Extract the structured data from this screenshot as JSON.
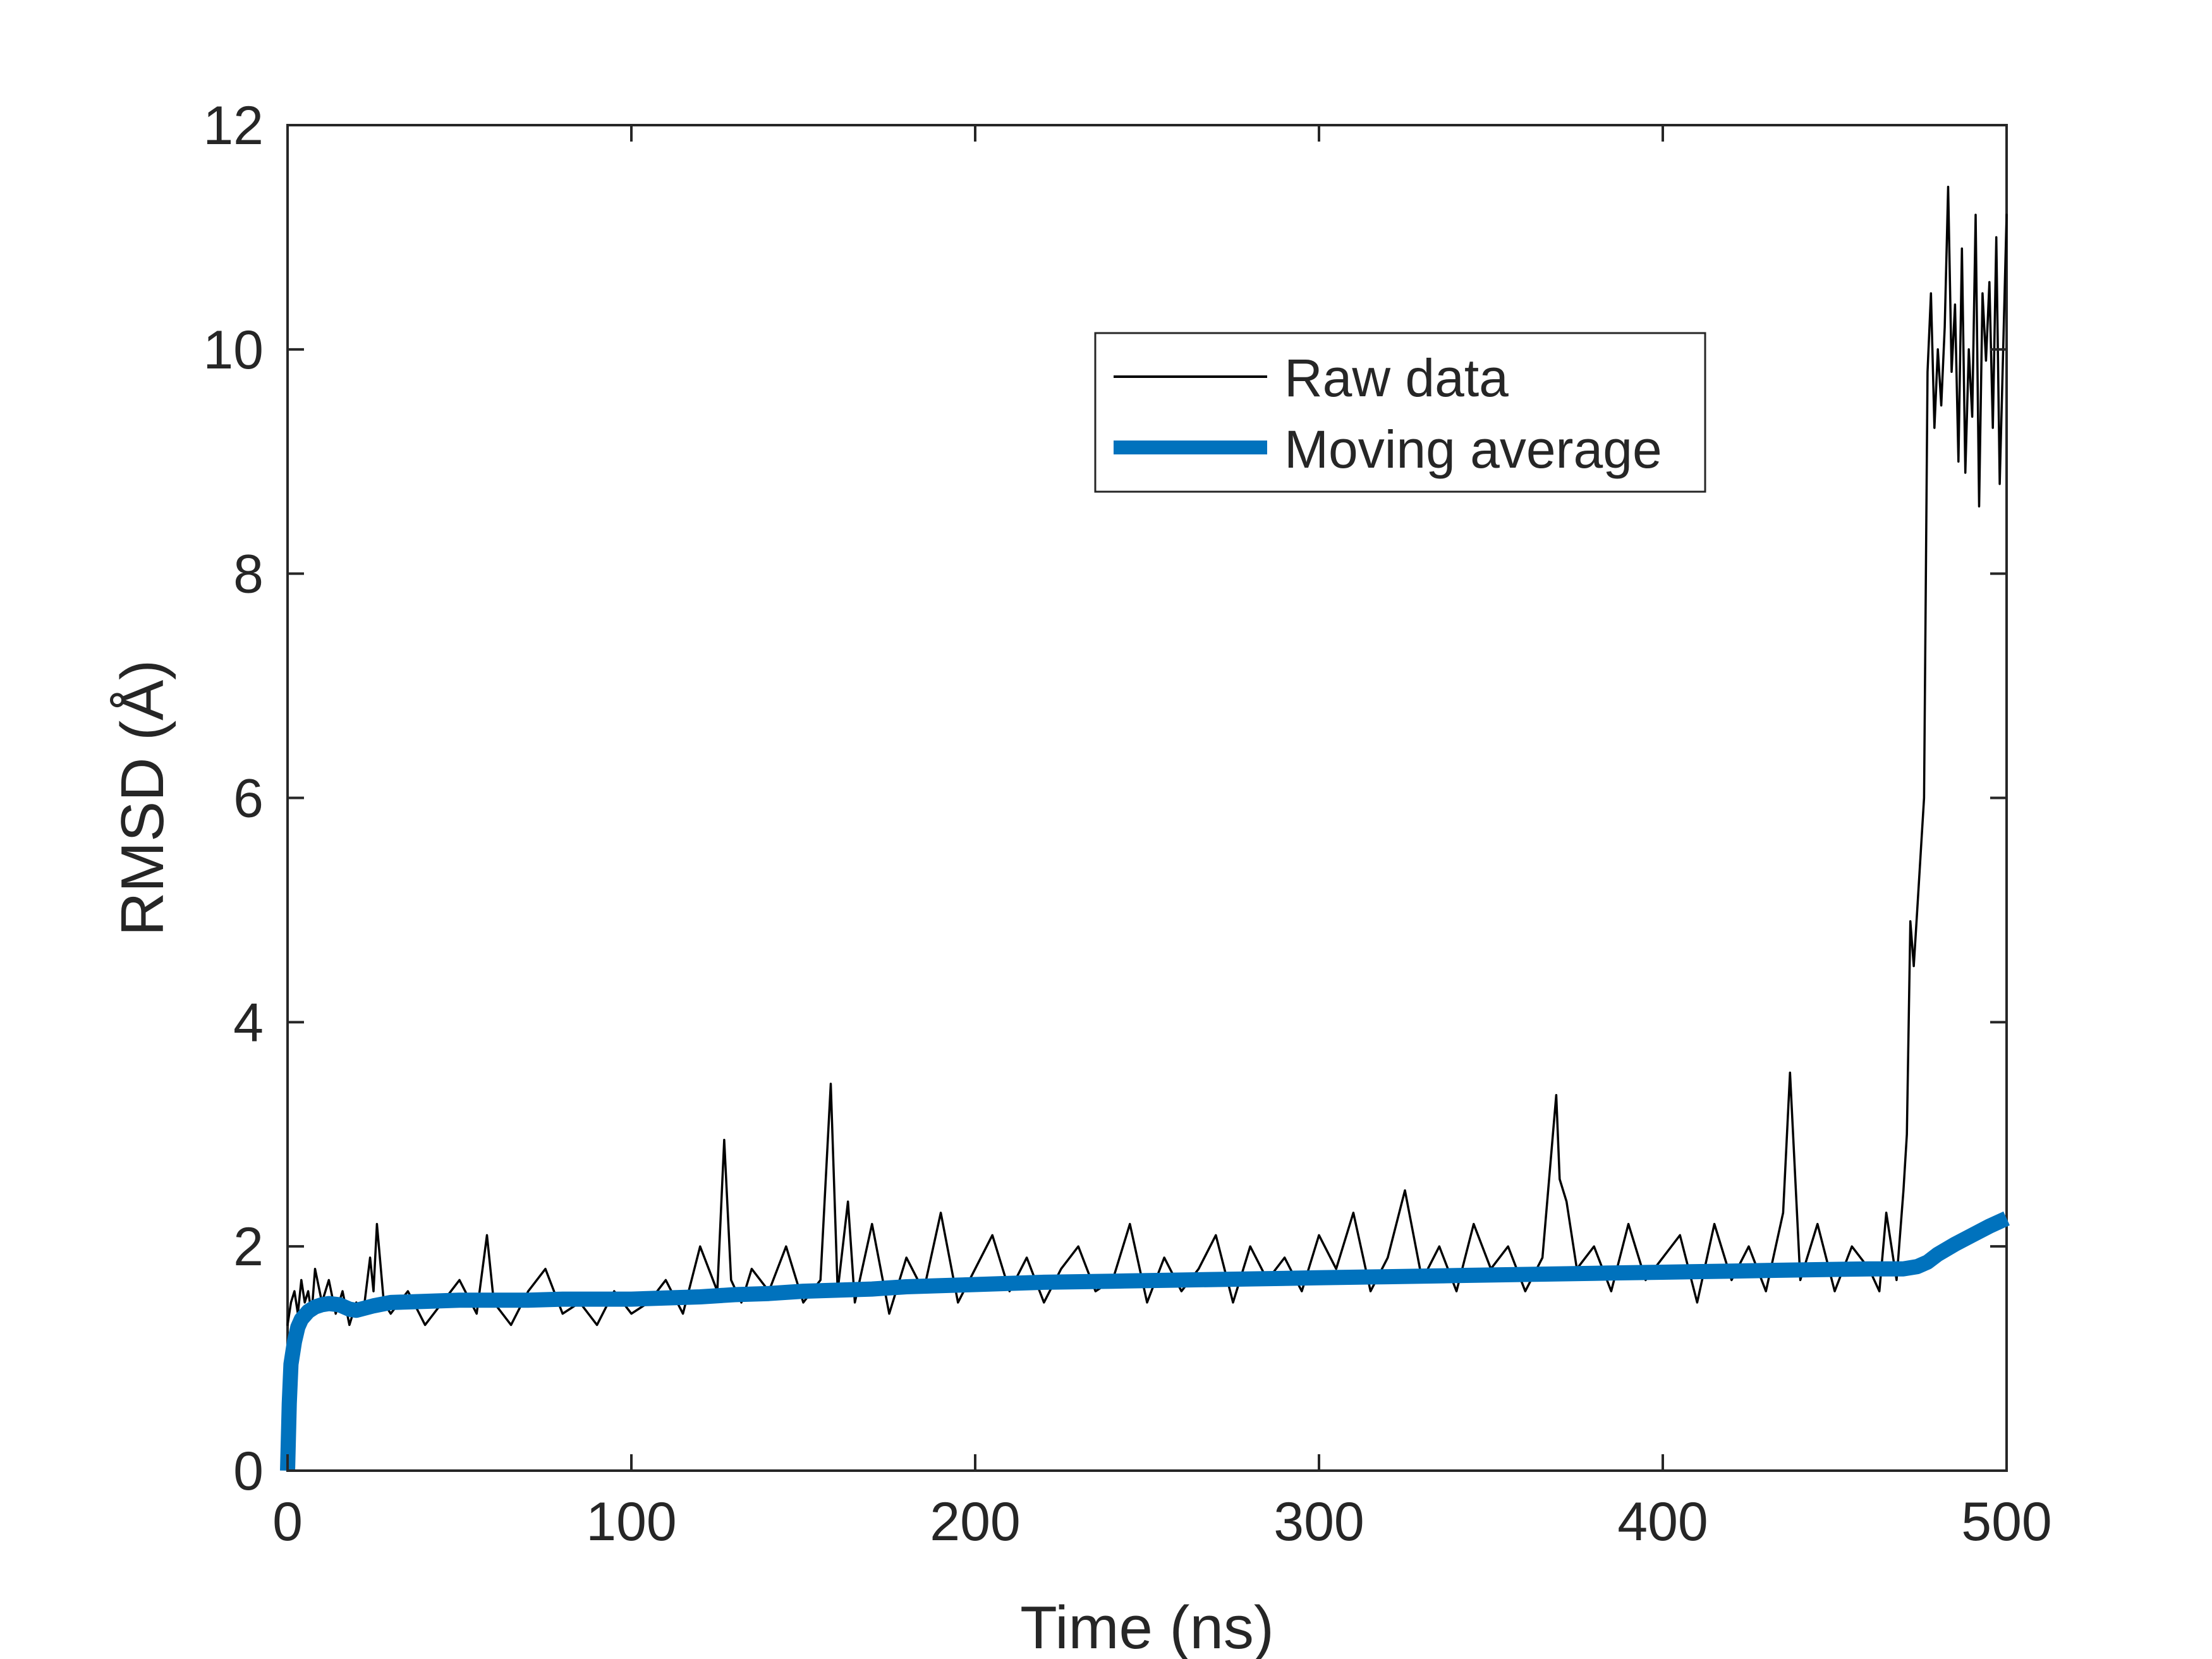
{
  "chart_data": {
    "type": "line",
    "title": "",
    "xlabel": "Time (ns)",
    "ylabel": "RMSD (Å)",
    "xlim": [
      0,
      500
    ],
    "ylim": [
      0,
      12
    ],
    "xticks": [
      0,
      100,
      200,
      300,
      400,
      500
    ],
    "yticks": [
      0,
      2,
      4,
      6,
      8,
      10,
      12
    ],
    "xtick_labels": [
      "0",
      "100",
      "200",
      "300",
      "400",
      "500"
    ],
    "ytick_labels": [
      "0",
      "2",
      "4",
      "6",
      "8",
      "10",
      "12"
    ],
    "grid": false,
    "box": true,
    "legend": {
      "position": "upper-right-inside",
      "entries": [
        "Raw data",
        "Moving average"
      ]
    },
    "series": [
      {
        "name": "Raw data",
        "color": "#000000",
        "style": "thin-line",
        "x": [
          0,
          1,
          2,
          3,
          4,
          5,
          6,
          7,
          8,
          10,
          12,
          14,
          16,
          18,
          20,
          22,
          24,
          25,
          26,
          28,
          30,
          35,
          40,
          45,
          50,
          55,
          58,
          60,
          65,
          70,
          75,
          80,
          85,
          90,
          95,
          100,
          105,
          110,
          115,
          120,
          125,
          127,
          129,
          132,
          135,
          140,
          145,
          150,
          155,
          158,
          160,
          163,
          165,
          170,
          175,
          180,
          185,
          190,
          195,
          200,
          205,
          210,
          215,
          220,
          225,
          230,
          235,
          240,
          245,
          250,
          255,
          260,
          265,
          270,
          275,
          280,
          285,
          290,
          295,
          300,
          305,
          310,
          315,
          320,
          325,
          330,
          335,
          340,
          345,
          350,
          355,
          360,
          365,
          369,
          370,
          372,
          375,
          380,
          385,
          390,
          395,
          400,
          405,
          410,
          415,
          420,
          425,
          430,
          435,
          437,
          440,
          445,
          450,
          455,
          460,
          463,
          465,
          468,
          470,
          471,
          472,
          473,
          474,
          475,
          476,
          477,
          478,
          479,
          480,
          481,
          482,
          483,
          484,
          485,
          486,
          487,
          488,
          489,
          490,
          491,
          492,
          493,
          494,
          495,
          496,
          497,
          498,
          499,
          500
        ],
        "y": [
          1.3,
          1.5,
          1.6,
          1.4,
          1.7,
          1.5,
          1.6,
          1.4,
          1.8,
          1.5,
          1.7,
          1.4,
          1.6,
          1.3,
          1.5,
          1.4,
          1.9,
          1.6,
          2.2,
          1.5,
          1.4,
          1.6,
          1.3,
          1.5,
          1.7,
          1.4,
          2.1,
          1.5,
          1.3,
          1.6,
          1.8,
          1.4,
          1.5,
          1.3,
          1.6,
          1.4,
          1.5,
          1.7,
          1.4,
          2.0,
          1.6,
          2.95,
          1.7,
          1.5,
          1.8,
          1.6,
          2.0,
          1.5,
          1.7,
          3.45,
          1.6,
          2.4,
          1.5,
          2.2,
          1.4,
          1.9,
          1.6,
          2.3,
          1.5,
          1.8,
          2.1,
          1.6,
          1.9,
          1.5,
          1.8,
          2.0,
          1.6,
          1.7,
          2.2,
          1.5,
          1.9,
          1.6,
          1.8,
          2.1,
          1.5,
          2.0,
          1.7,
          1.9,
          1.6,
          2.1,
          1.8,
          2.3,
          1.6,
          1.9,
          2.5,
          1.7,
          2.0,
          1.6,
          2.2,
          1.8,
          2.0,
          1.6,
          1.9,
          3.35,
          2.6,
          2.4,
          1.8,
          2.0,
          1.6,
          2.2,
          1.7,
          1.9,
          2.1,
          1.5,
          2.2,
          1.7,
          2.0,
          1.6,
          2.3,
          3.55,
          1.7,
          2.2,
          1.6,
          2.0,
          1.8,
          1.6,
          2.3,
          1.7,
          2.5,
          3.0,
          4.9,
          4.5,
          5.0,
          5.5,
          6.0,
          9.8,
          10.5,
          9.3,
          10.0,
          9.5,
          10.2,
          11.45,
          9.8,
          10.4,
          9.0,
          10.9,
          8.9,
          10.0,
          9.4,
          11.2,
          8.6,
          10.5,
          9.9,
          10.6,
          9.3,
          11.0,
          8.8,
          10.0,
          11.2
        ]
      },
      {
        "name": "Moving average",
        "color": "#0072BD",
        "style": "thick-line",
        "x": [
          0,
          0.5,
          1,
          2,
          3,
          4,
          6,
          8,
          10,
          12,
          15,
          18,
          20,
          25,
          30,
          40,
          50,
          60,
          70,
          80,
          90,
          100,
          110,
          120,
          130,
          140,
          150,
          160,
          170,
          180,
          190,
          200,
          220,
          240,
          260,
          280,
          300,
          320,
          340,
          360,
          380,
          400,
          420,
          440,
          460,
          470,
          474,
          477,
          480,
          485,
          490,
          495,
          500
        ],
        "y": [
          0.0,
          0.6,
          0.95,
          1.15,
          1.28,
          1.35,
          1.42,
          1.46,
          1.48,
          1.49,
          1.48,
          1.44,
          1.43,
          1.47,
          1.5,
          1.51,
          1.52,
          1.52,
          1.52,
          1.53,
          1.53,
          1.53,
          1.54,
          1.55,
          1.57,
          1.58,
          1.6,
          1.61,
          1.62,
          1.64,
          1.65,
          1.66,
          1.68,
          1.69,
          1.7,
          1.71,
          1.72,
          1.73,
          1.74,
          1.75,
          1.76,
          1.77,
          1.78,
          1.79,
          1.8,
          1.8,
          1.82,
          1.86,
          1.93,
          2.02,
          2.1,
          2.18,
          2.25
        ]
      }
    ]
  }
}
